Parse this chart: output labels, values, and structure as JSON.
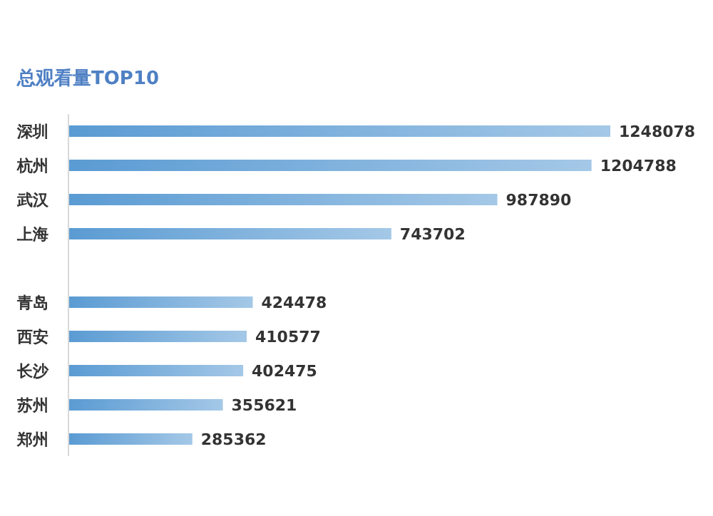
{
  "chart_data": {
    "type": "bar",
    "orientation": "horizontal",
    "title": "总观看量TOP10",
    "categories": [
      "深圳",
      "杭州",
      "武汉",
      "上海",
      null,
      "青岛",
      "西安",
      "长沙",
      "苏州",
      "郑州"
    ],
    "values": [
      1248078,
      1204788,
      987890,
      743702,
      null,
      424478,
      410577,
      402475,
      355621,
      285362
    ],
    "color": "#5a9bd3",
    "data_labels": true
  }
}
